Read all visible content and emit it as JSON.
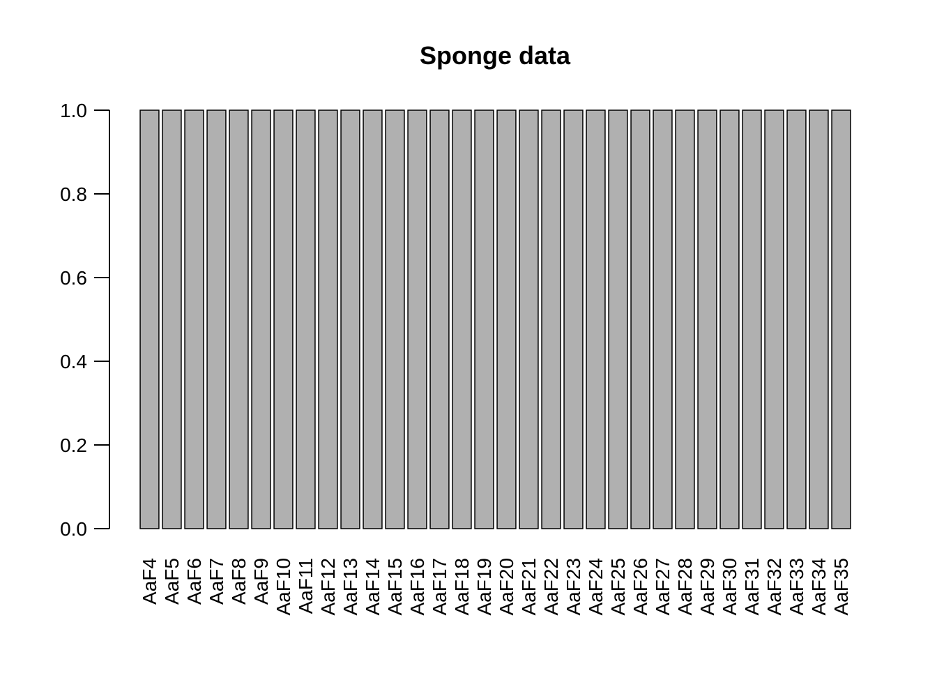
{
  "chart_data": {
    "type": "bar",
    "title": "Sponge data",
    "xlabel": "",
    "ylabel": "",
    "ylim": [
      0,
      1
    ],
    "yticks": [
      "0.0",
      "0.2",
      "0.4",
      "0.6",
      "0.8",
      "1.0"
    ],
    "categories": [
      "AaF4",
      "AaF5",
      "AaF6",
      "AaF7",
      "AaF8",
      "AaF9",
      "AaF10",
      "AaF11",
      "AaF12",
      "AaF13",
      "AaF14",
      "AaF15",
      "AaF16",
      "AaF17",
      "AaF18",
      "AaF19",
      "AaF20",
      "AaF21",
      "AaF22",
      "AaF23",
      "AaF24",
      "AaF25",
      "AaF26",
      "AaF27",
      "AaF28",
      "AaF29",
      "AaF30",
      "AaF31",
      "AaF32",
      "AaF33",
      "AaF34",
      "AaF35"
    ],
    "values": [
      1,
      1,
      1,
      1,
      1,
      1,
      1,
      1,
      1,
      1,
      1,
      1,
      1,
      1,
      1,
      1,
      1,
      1,
      1,
      1,
      1,
      1,
      1,
      1,
      1,
      1,
      1,
      1,
      1,
      1,
      1,
      1
    ],
    "bar_color": "#b0b0b0",
    "grid": false,
    "legend": "none"
  }
}
